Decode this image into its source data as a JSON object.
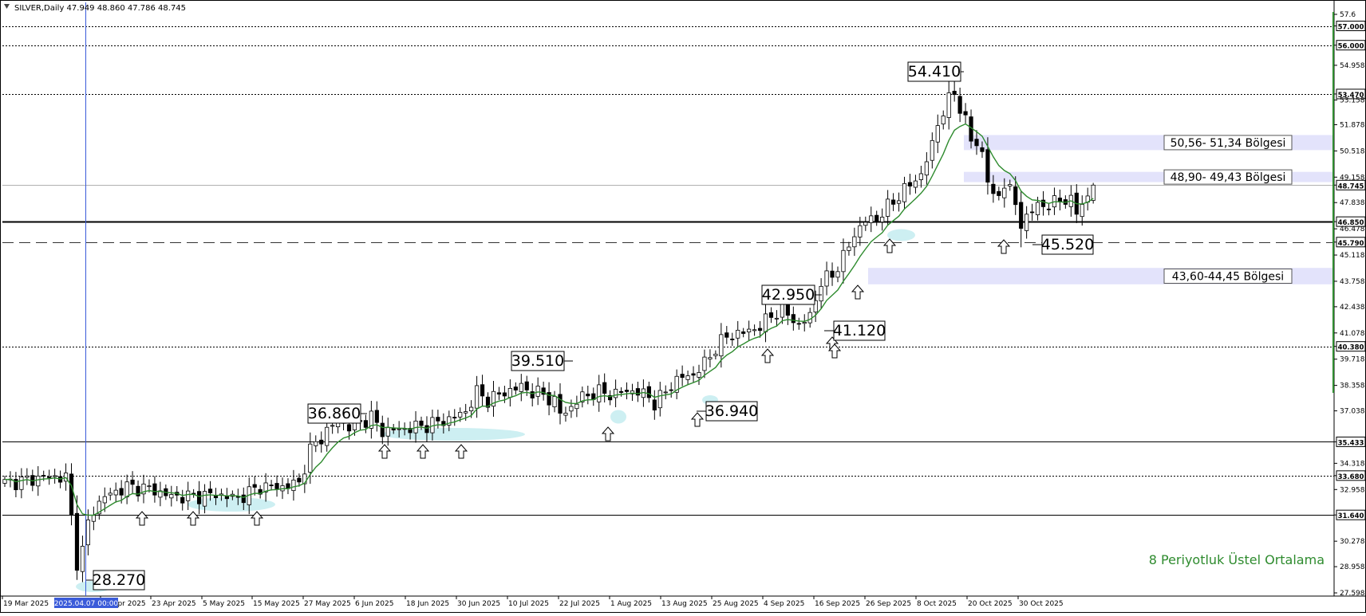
{
  "window": {
    "symbol_header": "SILVER,Daily  47.949 48.860 47.786 48.745"
  },
  "chart_data": {
    "type": "candlestick",
    "symbol": "SILVER",
    "timeframe": "Daily",
    "ohlc_last": {
      "open": 47.949,
      "high": 48.86,
      "low": 47.786,
      "close": 48.745
    },
    "y_axis": {
      "range": [
        27.598,
        57.6
      ],
      "tick_labels": [
        "57.6",
        "57.000",
        "56.000",
        "54.958",
        "53.470",
        "53.158",
        "51.878",
        "50.518",
        "49.158",
        "48.745",
        "47.838",
        "46.850",
        "46.478",
        "45.790",
        "45.118",
        "43.758",
        "42.438",
        "41.078",
        "40.380",
        "39.718",
        "38.358",
        "37.038",
        "35.433",
        "34.318",
        "33.680",
        "32.958",
        "31.640",
        "30.278",
        "28.958",
        "27.598"
      ],
      "highlighted_labels": [
        "57.000",
        "56.000",
        "53.470",
        "48.745",
        "46.850",
        "45.790",
        "40.380",
        "35.433",
        "33.680",
        "31.640"
      ]
    },
    "x_axis": {
      "tick_labels": [
        "19 Mar 2025",
        "11 Apr 2025",
        "23 Apr 2025",
        "5 May 2025",
        "15 May 2025",
        "27 May 2025",
        "6 Jun 2025",
        "18 Jun 2025",
        "30 Jun 2025",
        "10 Jul 2025",
        "22 Jul 2025",
        "1 Aug 2025",
        "13 Aug 2025",
        "25 Aug 2025",
        "4 Sep 2025",
        "16 Sep 2025",
        "26 Sep 2025",
        "8 Oct 2025",
        "20 Oct 2025",
        "30 Oct 2025"
      ],
      "crosshair_label": "2025.04.07 00:00"
    },
    "horizontal_levels": [
      {
        "value": 57.0,
        "style": "dotted"
      },
      {
        "value": 56.0,
        "style": "dotted"
      },
      {
        "value": 53.47,
        "style": "dotted"
      },
      {
        "value": 48.745,
        "style": "thin-gray"
      },
      {
        "value": 46.85,
        "style": "solid-thick"
      },
      {
        "value": 45.79,
        "style": "dashed"
      },
      {
        "value": 40.38,
        "style": "dotted"
      },
      {
        "value": 35.433,
        "style": "solid"
      },
      {
        "value": 33.68,
        "style": "dotted"
      },
      {
        "value": 31.64,
        "style": "solid"
      }
    ],
    "zones": [
      {
        "label": "50,56- 51,34 Bölgesi",
        "low": 50.56,
        "high": 51.34
      },
      {
        "label": "48,90- 49,43 Bölgesi",
        "low": 48.9,
        "high": 49.43
      },
      {
        "label": "43,60-44,45 Bölgesi",
        "low": 43.6,
        "high": 44.45
      }
    ],
    "price_labels": [
      {
        "text": "28.270",
        "value": 28.27
      },
      {
        "text": "36.860",
        "value": 36.86
      },
      {
        "text": "39.510",
        "value": 39.51
      },
      {
        "text": "36.940",
        "value": 36.94
      },
      {
        "text": "42.950",
        "value": 42.95
      },
      {
        "text": "41.120",
        "value": 41.12
      },
      {
        "text": "54.410",
        "value": 54.41
      },
      {
        "text": "45.520",
        "value": 45.52
      }
    ],
    "arrow_count": 14,
    "ema_legend": "8 Periyotluk Üstel Ortalama",
    "colors": {
      "ema": "#2e8b2e",
      "zone": "#e3e3fb",
      "support_highlight": "#cdeff2",
      "crosshair": "#3a5bd9",
      "bull_body": "#ffffff",
      "bear_body": "#000000",
      "ema_legend_text": "#2e8b2e"
    }
  }
}
